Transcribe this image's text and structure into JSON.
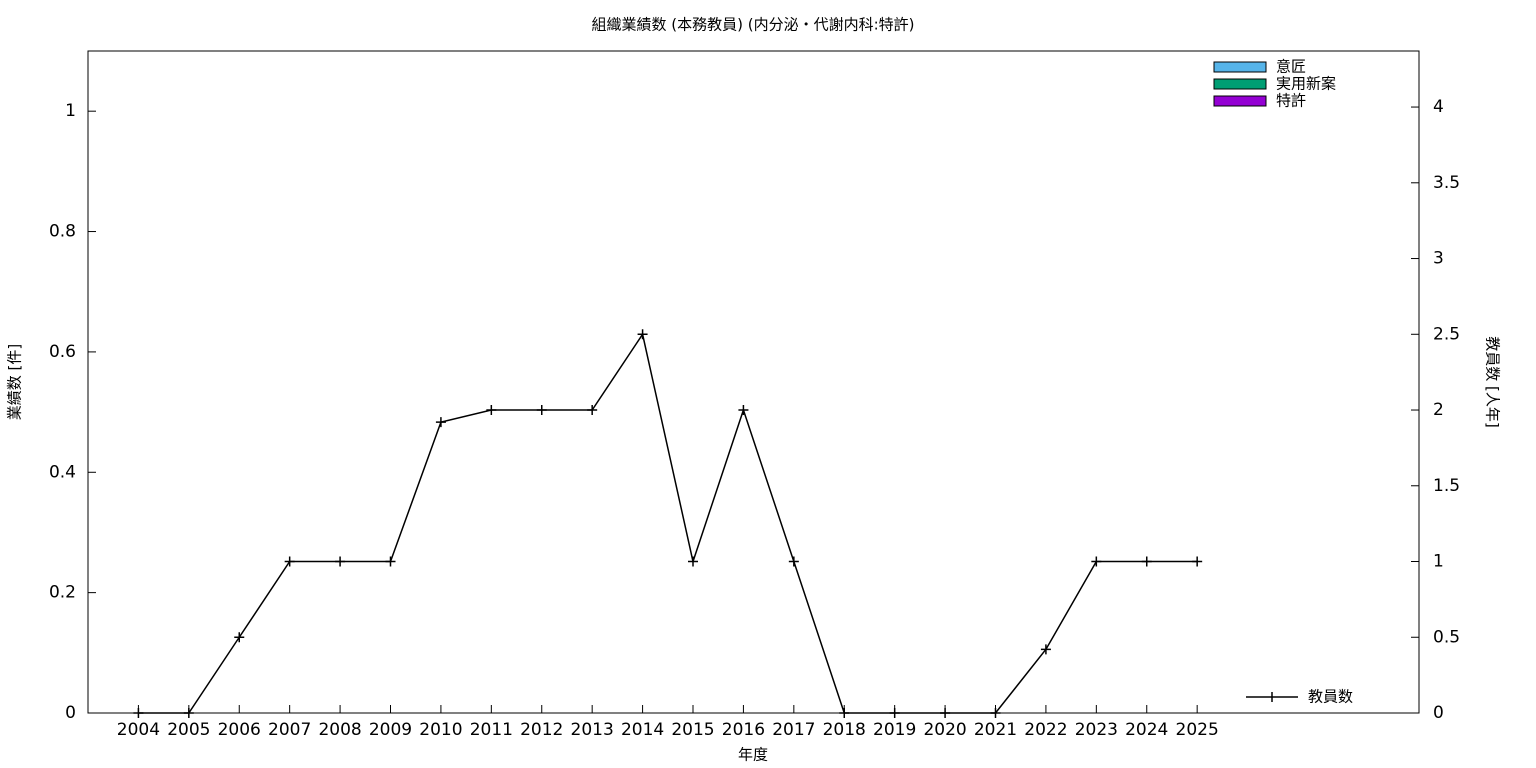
{
  "chart_data": {
    "type": "bar-line",
    "title": "組織業績数 (本務教員) (内分泌・代謝内科:特許)",
    "x_label": "年度",
    "y_label": "業績数 [件]",
    "y2_label": "教員数 [人年]",
    "x": [
      2004,
      2005,
      2006,
      2007,
      2008,
      2009,
      2010,
      2011,
      2012,
      2013,
      2014,
      2015,
      2016,
      2017,
      2018,
      2019,
      2020,
      2021,
      2022,
      2023,
      2024,
      2025
    ],
    "xlim": [
      2003,
      2029.4
    ],
    "xticks": [
      2004,
      2005,
      2006,
      2007,
      2008,
      2009,
      2010,
      2011,
      2012,
      2013,
      2014,
      2015,
      2016,
      2017,
      2018,
      2019,
      2020,
      2021,
      2022,
      2023,
      2024,
      2025
    ],
    "ylim": [
      0,
      1.1
    ],
    "yticks": [
      0,
      0.2,
      0.4,
      0.6,
      0.8,
      1
    ],
    "y2lim": [
      0,
      4.37
    ],
    "y2ticks": [
      0,
      0.5,
      1,
      1.5,
      2,
      2.5,
      3,
      3.5,
      4
    ],
    "series": [
      {
        "name": "意匠",
        "color": "#56b4e9",
        "kind": "bar",
        "values": [
          0,
          0,
          0,
          0,
          0,
          0,
          0,
          0,
          0,
          0,
          0,
          0,
          0,
          0,
          0,
          0,
          0,
          0,
          0,
          0,
          0,
          0
        ]
      },
      {
        "name": "実用新案",
        "color": "#009e73",
        "kind": "bar",
        "values": [
          0,
          0,
          0,
          0,
          0,
          0,
          0,
          0,
          0,
          0,
          0,
          0,
          0,
          0,
          0,
          0,
          0,
          0,
          0,
          0,
          0,
          0
        ]
      },
      {
        "name": "特許",
        "color": "#9400d3",
        "kind": "bar",
        "values": [
          0,
          0,
          0,
          0,
          0,
          0,
          0,
          0,
          0,
          0,
          0,
          0,
          0,
          0,
          0,
          0,
          0,
          0,
          0,
          0,
          0,
          0
        ]
      },
      {
        "name": "教員数",
        "color": "#000000",
        "kind": "line",
        "axis": "y2",
        "values": [
          0,
          0,
          0.5,
          1,
          1,
          1,
          1.92,
          2,
          2,
          2,
          2.5,
          1,
          2,
          1,
          0,
          0,
          0,
          0,
          0.42,
          1,
          1,
          1
        ]
      }
    ]
  }
}
